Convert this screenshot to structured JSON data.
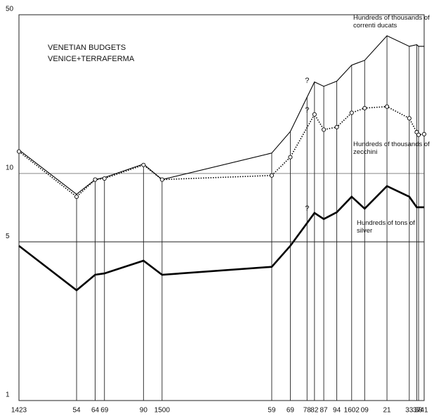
{
  "chart_data": {
    "type": "line",
    "title": "VENETIAN BUDGETS",
    "subtitle": "VENICE+TERRAFERMA",
    "x": [
      1423,
      1454,
      1464,
      1469,
      1490,
      1500,
      1559,
      1569,
      1582,
      1587,
      1594,
      1602,
      1609,
      1621,
      1633,
      1637,
      1638,
      1641
    ],
    "series": [
      {
        "name": "Hundreds of thousands of correnti ducats",
        "color": "#000000",
        "style": "thin",
        "values": [
          12.7,
          8.1,
          9.4,
          9.6,
          11.0,
          9.4,
          12.3,
          15.3,
          25.3,
          24.2,
          25.5,
          30.0,
          31.5,
          40.4,
          36.3,
          36.9,
          36.3,
          36.3
        ]
      },
      {
        "name": "Hundreds of thousands of zecchini",
        "color": "#000000",
        "style": "dotted",
        "values": [
          12.5,
          7.9,
          9.4,
          9.5,
          10.9,
          9.4,
          9.8,
          11.8,
          18.2,
          15.6,
          16.0,
          18.5,
          19.4,
          19.7,
          17.5,
          15.2,
          14.8,
          14.9
        ]
      },
      {
        "name": "Hundreds of tons of silver",
        "color": "#000000",
        "style": "thick",
        "values": [
          4.8,
          3.06,
          3.58,
          3.63,
          4.13,
          3.58,
          3.88,
          4.8,
          6.7,
          6.3,
          6.75,
          7.9,
          7.0,
          8.8,
          7.9,
          7.1,
          7.1,
          7.1
        ]
      }
    ],
    "annotations": [
      "?",
      "?",
      "?"
    ],
    "xlim": [
      1423,
      1641
    ],
    "xticks": [
      {
        "value": 1423,
        "label": "1423"
      },
      {
        "value": 1454,
        "label": "54"
      },
      {
        "value": 1464,
        "label": "64"
      },
      {
        "value": 1469,
        "label": "69"
      },
      {
        "value": 1490,
        "label": "90"
      },
      {
        "value": 1500,
        "label": "1500"
      },
      {
        "value": 1559,
        "label": "59"
      },
      {
        "value": 1569,
        "label": "69"
      },
      {
        "value": 1578,
        "label": "78"
      },
      {
        "value": 1582,
        "label": "82"
      },
      {
        "value": 1587,
        "label": "87"
      },
      {
        "value": 1594,
        "label": "94"
      },
      {
        "value": 1602,
        "label": "1602"
      },
      {
        "value": 1609,
        "label": "09"
      },
      {
        "value": 1621,
        "label": "21"
      },
      {
        "value": 1633,
        "label": "33"
      },
      {
        "value": 1637,
        "label": "37"
      },
      {
        "value": 1638,
        "label": "38"
      },
      {
        "value": 1641,
        "label": "41"
      }
    ],
    "ylim": [
      1,
      50
    ],
    "yticks": [
      1,
      5,
      10,
      50
    ],
    "log_y": true,
    "grid": true
  }
}
